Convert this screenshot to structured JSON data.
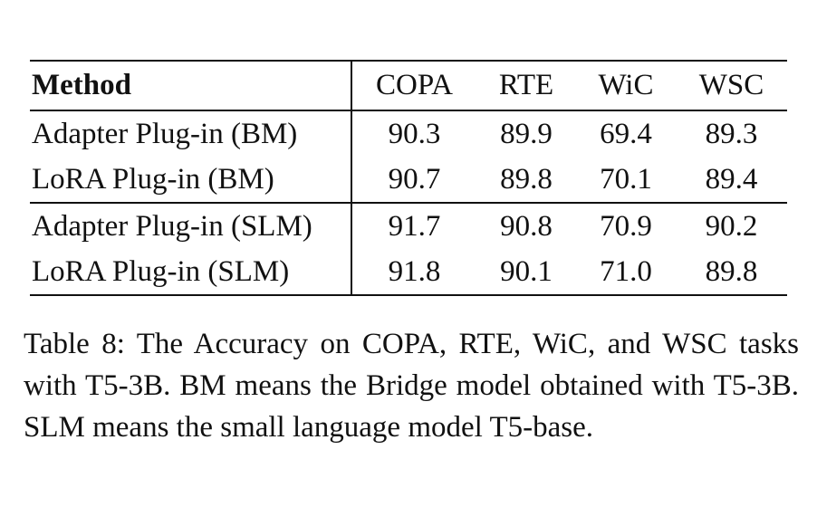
{
  "table": {
    "columns": [
      "Method",
      "COPA",
      "RTE",
      "WiC",
      "WSC"
    ],
    "groups": [
      {
        "rows": [
          {
            "method": "Adapter Plug-in (BM)",
            "copa": "90.3",
            "rte": "89.9",
            "wic": "69.4",
            "wsc": "89.3"
          },
          {
            "method": "LoRA Plug-in (BM)",
            "copa": "90.7",
            "rte": "89.8",
            "wic": "70.1",
            "wsc": "89.4"
          }
        ]
      },
      {
        "rows": [
          {
            "method": "Adapter Plug-in (SLM)",
            "copa": "91.7",
            "rte": "90.8",
            "wic": "70.9",
            "wsc": "90.2"
          },
          {
            "method": "LoRA Plug-in (SLM)",
            "copa": "91.8",
            "rte": "90.1",
            "wic": "71.0",
            "wsc": "89.8"
          }
        ]
      }
    ]
  },
  "caption": "Table 8: The Accuracy on COPA, RTE, WiC, and WSC tasks with T5-3B. BM means the Bridge model obtained with T5-3B. SLM means the small language model T5-base."
}
